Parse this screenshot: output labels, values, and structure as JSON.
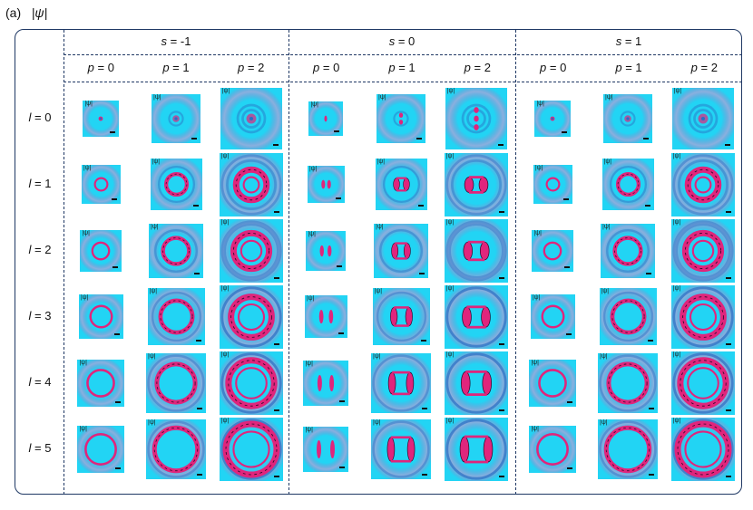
{
  "panel": {
    "label": "(a)",
    "quantity": "|ψ|"
  },
  "column_groups": [
    {
      "param": "s",
      "value": "-1"
    },
    {
      "param": "s",
      "value": "0"
    },
    {
      "param": "s",
      "value": "1"
    }
  ],
  "sub_columns": [
    {
      "param": "p",
      "value": "0"
    },
    {
      "param": "p",
      "value": "1"
    },
    {
      "param": "p",
      "value": "2"
    }
  ],
  "rows": [
    {
      "param": "l",
      "value": "0"
    },
    {
      "param": "l",
      "value": "1"
    },
    {
      "param": "l",
      "value": "2"
    },
    {
      "param": "l",
      "value": "3"
    },
    {
      "param": "l",
      "value": "4"
    },
    {
      "param": "l",
      "value": "5"
    }
  ],
  "tile_label": "|ψ|",
  "colors": {
    "frame": "#1f3864",
    "background_field": "#22d4f4",
    "halo": "#2a6fc4",
    "density_high": "#e0257c",
    "density_peak": "#2a0a2a"
  }
}
